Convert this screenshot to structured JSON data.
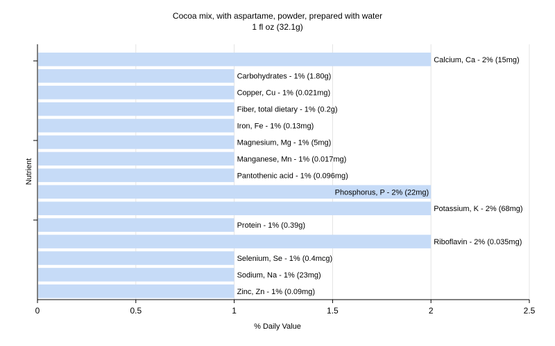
{
  "chart_data": {
    "type": "bar",
    "orientation": "horizontal",
    "title": "Cocoa mix, with aspartame, powder, prepared with water",
    "subtitle": "1 fl oz (32.1g)",
    "xlabel": "% Daily Value",
    "ylabel": "Nutrient",
    "xlim": [
      0,
      2.5
    ],
    "xticks": [
      "0",
      "0.5",
      "1",
      "1.5",
      "2",
      "2.5"
    ],
    "grid": true,
    "bar_color": "#c6dbf7",
    "bars": [
      {
        "label": "Calcium, Ca - 2% (15mg)",
        "value": 2
      },
      {
        "label": "Carbohydrates - 1% (1.80g)",
        "value": 1
      },
      {
        "label": "Copper, Cu - 1% (0.021mg)",
        "value": 1
      },
      {
        "label": "Fiber, total dietary - 1% (0.2g)",
        "value": 1
      },
      {
        "label": "Iron, Fe - 1% (0.13mg)",
        "value": 1
      },
      {
        "label": "Magnesium, Mg - 1% (5mg)",
        "value": 1
      },
      {
        "label": "Manganese, Mn - 1% (0.017mg)",
        "value": 1
      },
      {
        "label": "Pantothenic acid - 1% (0.096mg)",
        "value": 1
      },
      {
        "label": "Phosphorus, P - 2% (22mg)",
        "value": 2,
        "label_inside": true
      },
      {
        "label": "Potassium, K - 2% (68mg)",
        "value": 2
      },
      {
        "label": "Protein - 1% (0.39g)",
        "value": 1
      },
      {
        "label": "Riboflavin - 2% (0.035mg)",
        "value": 2
      },
      {
        "label": "Selenium, Se - 1% (0.4mcg)",
        "value": 1
      },
      {
        "label": "Sodium, Na - 1% (23mg)",
        "value": 1
      },
      {
        "label": "Zinc, Zn - 1% (0.09mg)",
        "value": 1
      }
    ]
  }
}
